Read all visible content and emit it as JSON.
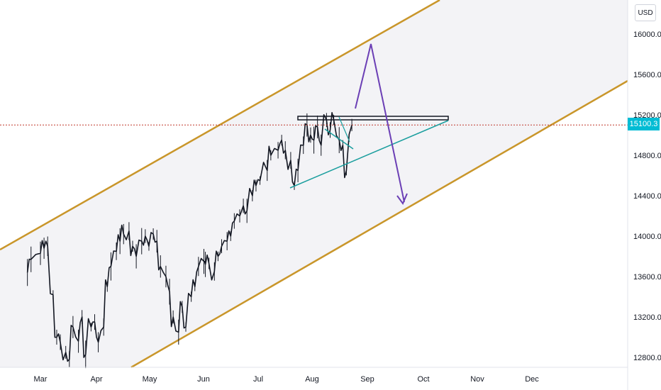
{
  "chart_data": {
    "type": "line",
    "currency": "USD",
    "last_price": "15100.3",
    "x_labels": [
      "Mar",
      "Apr",
      "May",
      "Jun",
      "Jul",
      "Aug",
      "Sep",
      "Oct",
      "Nov",
      "Dec"
    ],
    "y_ticks": [
      "16000.0",
      "15600.0",
      "15200.0",
      "14800.0",
      "14400.0",
      "14000.0",
      "13600.0",
      "13200.0",
      "12800.0"
    ],
    "ylim": [
      12720,
      16220
    ],
    "price_series": [
      [
        "Feb 24",
        13640
      ],
      [
        "Feb 26",
        13770
      ],
      [
        "Mar 1",
        13830
      ],
      [
        "Mar 3",
        13880
      ],
      [
        "Mar 5",
        13900
      ],
      [
        "Mar 8",
        13420
      ],
      [
        "Mar 10",
        13000
      ],
      [
        "Mar 12",
        12950
      ],
      [
        "Mar 15",
        12850
      ],
      [
        "Mar 17",
        12780
      ],
      [
        "Mar 19",
        13100
      ],
      [
        "Mar 22",
        12960
      ],
      [
        "Mar 24",
        13200
      ],
      [
        "Mar 26",
        12830
      ],
      [
        "Mar 29",
        13100
      ],
      [
        "Mar 31",
        13150
      ],
      [
        "Apr 2",
        12950
      ],
      [
        "Apr 5",
        13100
      ],
      [
        "Apr 7",
        13500
      ],
      [
        "Apr 9",
        13700
      ],
      [
        "Apr 12",
        13850
      ],
      [
        "Apr 14",
        13950
      ],
      [
        "Apr 16",
        14020
      ],
      [
        "Apr 19",
        14050
      ],
      [
        "Apr 21",
        13900
      ],
      [
        "Apr 23",
        13800
      ],
      [
        "Apr 26",
        13950
      ],
      [
        "Apr 28",
        14000
      ],
      [
        "Apr 30",
        13900
      ],
      [
        "May 3",
        14020
      ],
      [
        "May 5",
        13950
      ],
      [
        "May 7",
        13700
      ],
      [
        "May 10",
        13600
      ],
      [
        "May 12",
        13450
      ],
      [
        "May 14",
        13200
      ],
      [
        "May 17",
        13050
      ],
      [
        "May 19",
        13300
      ],
      [
        "May 21",
        13100
      ],
      [
        "May 24",
        13400
      ],
      [
        "May 26",
        13500
      ],
      [
        "May 28",
        13700
      ],
      [
        "May 31",
        13750
      ],
      [
        "Jun 2",
        13720
      ],
      [
        "Jun 4",
        13730
      ],
      [
        "Jun 7",
        13650
      ],
      [
        "Jun 9",
        13800
      ],
      [
        "Jun 11",
        13900
      ],
      [
        "Jun 14",
        13950
      ],
      [
        "Jun 16",
        14000
      ],
      [
        "Jun 18",
        14150
      ],
      [
        "Jun 21",
        14200
      ],
      [
        "Jun 23",
        14300
      ],
      [
        "Jun 25",
        14250
      ],
      [
        "Jun 28",
        14400
      ],
      [
        "Jun 30",
        14500
      ],
      [
        "Jul 2",
        14550
      ],
      [
        "Jul 6",
        14650
      ],
      [
        "Jul 8",
        14800
      ],
      [
        "Jul 12",
        14850
      ],
      [
        "Jul 14",
        14950
      ],
      [
        "Jul 16",
        14850
      ],
      [
        "Jul 19",
        14750
      ],
      [
        "Jul 21",
        14500
      ],
      [
        "Jul 23",
        14650
      ],
      [
        "Jul 26",
        14900
      ],
      [
        "Jul 28",
        15100
      ],
      [
        "Jul 30",
        15000
      ],
      [
        "Aug 2",
        14950
      ],
      [
        "Aug 4",
        15080
      ],
      [
        "Aug 6",
        14900
      ],
      [
        "Aug 9",
        15150
      ],
      [
        "Aug 11",
        15050
      ],
      [
        "Aug 13",
        15150
      ],
      [
        "Aug 16",
        14950
      ],
      [
        "Aug 18",
        14900
      ],
      [
        "Aug 20",
        14650
      ],
      [
        "Aug 23",
        15100
      ]
    ],
    "annotations": [
      {
        "kind": "rising-channel",
        "color": "#c9962a"
      },
      {
        "kind": "horizontal-resistance",
        "level": 15150
      },
      {
        "kind": "ascending-support",
        "color": "#1a9e9e"
      },
      {
        "kind": "projection-arrow",
        "color": "#6b3fb5"
      },
      {
        "kind": "last-price-line",
        "color": "#c0392b",
        "value": 15100.3
      }
    ],
    "grid": false,
    "legend": "none"
  }
}
